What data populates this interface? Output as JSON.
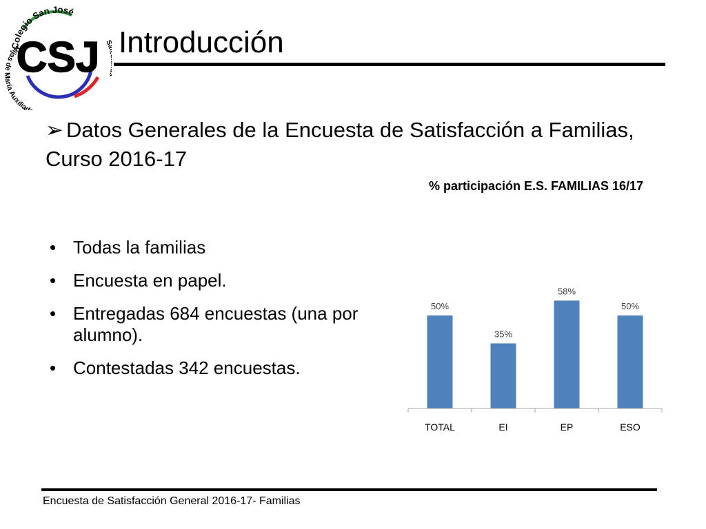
{
  "logo": {
    "monogram": "CSJ",
    "top_text": "Colegio San José",
    "left_text": "Hijas de María Auxiliadora",
    "right_text": "Salesianas",
    "colors": {
      "red": "#e0262b",
      "green": "#2e9a3e",
      "blue": "#2a2fb5",
      "black": "#000000"
    }
  },
  "slide": {
    "title": "Introducción",
    "subtitle": "Datos Generales de la Encuesta de Satisfacción a Familias, Curso 2016-17",
    "subtitle_marker": "➢",
    "bullet_marker": "•",
    "bullets": [
      "Todas la familias",
      "Encuesta en papel.",
      "Entregadas 684 encuestas (una por alumno).",
      "Contestadas 342 encuestas."
    ],
    "footer": "Encuesta  de Satisfacción General 2016-17- Familias"
  },
  "chart_data": {
    "type": "bar",
    "title": "% participación E.S. FAMILIAS 16/17",
    "categories": [
      "TOTAL",
      "EI",
      "EP",
      "ESO"
    ],
    "values": [
      50,
      35,
      58,
      50
    ],
    "data_labels": [
      "50%",
      "35%",
      "58%",
      "50%"
    ],
    "ylim": [
      0,
      60
    ],
    "grid": false,
    "legend": "none",
    "bar_color": "#4f81bd",
    "axis_color": "#a6a6a6"
  }
}
